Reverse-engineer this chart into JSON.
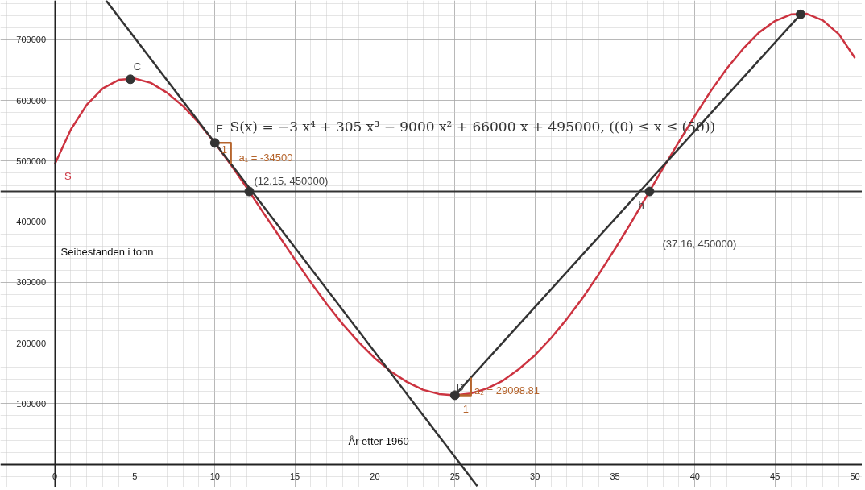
{
  "chart_data": {
    "type": "line",
    "xlabel": "År etter 1960",
    "ylabel": "Seibestanden i tonn",
    "xlim": [
      -3.4,
      50.45
    ],
    "ylim": [
      -37600,
      765000
    ],
    "xticks": [
      0,
      5,
      10,
      15,
      20,
      25,
      30,
      35,
      40,
      45,
      50
    ],
    "yticks": [
      100000,
      200000,
      300000,
      400000,
      500000,
      600000,
      700000
    ],
    "grid": true,
    "line_style": "solid",
    "series": [
      {
        "name": "S",
        "color": "#cc3340",
        "x": [
          0,
          1,
          2,
          3,
          4,
          5,
          6,
          7,
          8,
          9,
          10,
          11,
          12,
          13,
          14,
          15,
          16,
          17,
          18,
          19,
          20,
          21,
          22,
          23,
          24,
          25,
          26,
          27,
          28,
          29,
          30,
          31,
          32,
          33,
          34,
          35,
          36,
          37,
          38,
          39,
          40,
          41,
          42,
          43,
          44,
          45,
          46,
          47,
          48,
          49,
          50
        ],
        "values": [
          495000,
          552000,
          593000,
          620000,
          634000,
          636000,
          629000,
          613000,
          591000,
          563000,
          530000,
          494000,
          456000,
          416000,
          377000,
          338000,
          300000,
          264000,
          231000,
          201000,
          175000,
          153000,
          136000,
          123000,
          116000,
          114000,
          117000,
          125000,
          138000,
          157000,
          180000,
          208000,
          240000,
          275000,
          314000,
          355000,
          398000,
          443000,
          488000,
          532000,
          575000,
          616000,
          653000,
          685000,
          712000,
          731000,
          742000,
          743000,
          732000,
          709000,
          670000
        ]
      },
      {
        "color": "#333333",
        "x": [
          3.2,
          26.4
        ],
        "values": [
          765000,
          -36000
        ]
      },
      {
        "color": "#333333",
        "x": [
          25,
          46.6
        ],
        "values": [
          114000,
          742000
        ]
      },
      {
        "color": "#b5642c",
        "x": [
          10,
          11,
          11
        ],
        "values": [
          530000,
          530000,
          496000
        ]
      },
      {
        "color": "#b5642c",
        "x": [
          25,
          26,
          26
        ],
        "values": [
          114000,
          114000,
          143000
        ]
      },
      {
        "type": "scatter",
        "marker": "circle",
        "color": "#333333",
        "x": [
          4.72,
          10,
          12.15,
          25,
          37.16,
          46.6
        ],
        "values": [
          635000,
          530000,
          450000,
          114000,
          450000,
          742000
        ]
      }
    ],
    "ref_lines": [
      {
        "axis": "y",
        "value": 450000,
        "color": "#333333"
      }
    ],
    "annotations": [
      "S(x) = −3 x⁴ + 305 x³ − 9000 x² + 66000 x + 495000,    ((0) ≤ x ≤ (50))",
      {
        "text": "C",
        "x": 4.72,
        "y": 635000
      },
      {
        "text": "F",
        "x": 10,
        "y": 530000
      },
      {
        "text": "(12.15, 450000)",
        "x": 12.15,
        "y": 450000
      },
      {
        "text": "D",
        "x": 25,
        "y": 114000
      },
      {
        "text": "h",
        "x": 37.16,
        "y": 450000
      },
      "(37.16, 450000)",
      "a₁ = -34500",
      {
        "text": "1",
        "x": 11,
        "y": 513000
      },
      {
        "text": "a₂ = 29098.81",
        "x": 26,
        "y": 114000
      },
      {
        "text": "1",
        "x": 25.5,
        "y": 114000
      }
    ]
  }
}
